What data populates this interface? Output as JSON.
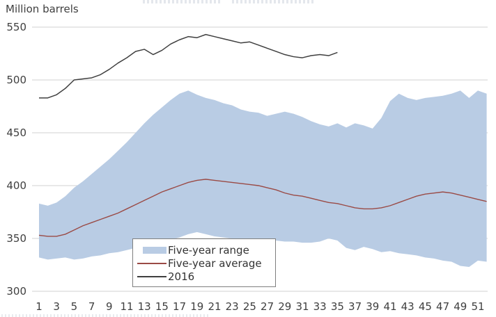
{
  "axis_title": "Million barrels",
  "legend": {
    "range_label": "Five-year range",
    "average_label": "Five-year average",
    "y2016_label": "2016"
  },
  "colors": {
    "range_fill": "#b9cce4",
    "average_line": "#9a4a45",
    "line_2016": "#3f3f3f",
    "gridline": "#d2d2d2",
    "text": "#3f3f3f"
  },
  "chart_data": {
    "type": "area",
    "ylabel": "Million barrels",
    "x_unit": "week of year",
    "weeks": 52,
    "xticks": [
      1,
      3,
      5,
      7,
      9,
      11,
      13,
      15,
      17,
      19,
      21,
      23,
      25,
      27,
      29,
      31,
      33,
      35,
      37,
      39,
      41,
      43,
      45,
      47,
      49,
      51
    ],
    "yticks": [
      550,
      500,
      450,
      400,
      350,
      300
    ],
    "ylim": [
      300,
      550
    ],
    "grid": "horizontal",
    "legend_position": "inside-bottom-center",
    "series": [
      {
        "name": "Five-year range upper",
        "role": "band-upper",
        "values": [
          383,
          381,
          384,
          390,
          398,
          404,
          411,
          418,
          425,
          433,
          441,
          450,
          459,
          467,
          474,
          481,
          487,
          490,
          486,
          483,
          481,
          478,
          476,
          472,
          470,
          469,
          466,
          468,
          470,
          468,
          465,
          461,
          458,
          456,
          459,
          455,
          459,
          457,
          454,
          464,
          480,
          487,
          483,
          481,
          483,
          484,
          485,
          487,
          490,
          483,
          490,
          487
        ]
      },
      {
        "name": "Five-year range lower",
        "role": "band-lower",
        "values": [
          332,
          330,
          331,
          332,
          330,
          331,
          333,
          334,
          336,
          337,
          339,
          341,
          343,
          345,
          347,
          349,
          351,
          354,
          356,
          354,
          352,
          351,
          350,
          350,
          350,
          349,
          348,
          348,
          347,
          347,
          346,
          346,
          347,
          350,
          348,
          341,
          339,
          342,
          340,
          337,
          338,
          336,
          335,
          334,
          332,
          331,
          329,
          328,
          324,
          323,
          329,
          328
        ]
      },
      {
        "name": "Five-year average",
        "role": "line",
        "values": [
          353,
          352,
          352,
          354,
          358,
          362,
          365,
          368,
          371,
          374,
          378,
          382,
          386,
          390,
          394,
          397,
          400,
          403,
          405,
          406,
          405,
          404,
          403,
          402,
          401,
          400,
          398,
          396,
          393,
          391,
          390,
          388,
          386,
          384,
          383,
          381,
          379,
          378,
          378,
          379,
          381,
          384,
          387,
          390,
          392,
          393,
          394,
          393,
          391,
          389,
          387,
          385
        ]
      },
      {
        "name": "2016",
        "role": "line",
        "values": [
          483,
          483,
          486,
          492,
          500,
          501,
          502,
          505,
          510,
          516,
          521,
          527,
          529,
          524,
          528,
          534,
          538,
          541,
          540,
          543,
          541,
          539,
          537,
          535,
          536,
          533,
          530,
          527,
          524,
          522,
          521,
          523,
          524,
          523,
          526
        ]
      }
    ]
  }
}
